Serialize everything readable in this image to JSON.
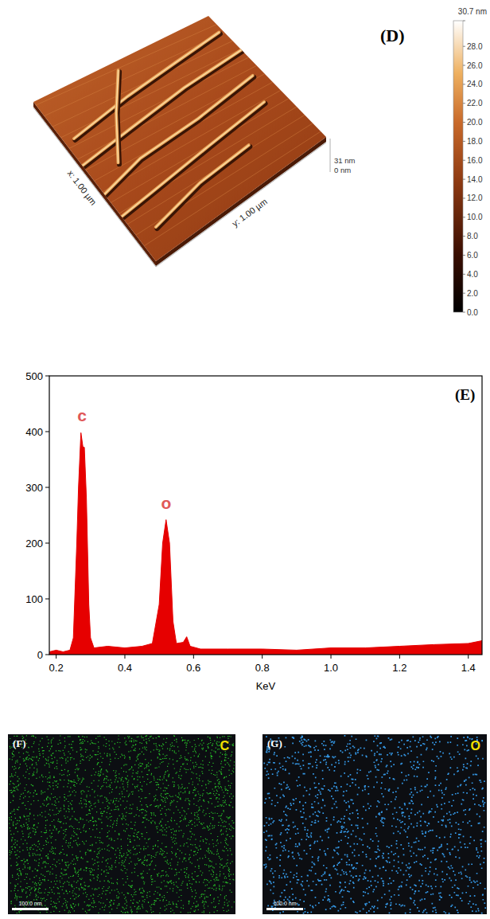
{
  "afm": {
    "letter": "(D)",
    "x_label": "x: 1.00 µm",
    "y_label": "y: 1.00 µm",
    "z_labels": [
      "31 nm",
      "0 nm"
    ],
    "colorbar": {
      "range": [
        0,
        30.7
      ],
      "max_label": "30.7 nm",
      "ticks": [
        {
          "value": 0,
          "label": "0.0"
        },
        {
          "value": 2,
          "label": "2.0"
        },
        {
          "value": 4,
          "label": "4.0"
        },
        {
          "value": 6,
          "label": "6.0"
        },
        {
          "value": 8,
          "label": "8.0"
        },
        {
          "value": 10,
          "label": "10.0"
        },
        {
          "value": 12,
          "label": "12.0"
        },
        {
          "value": 14,
          "label": "14.0"
        },
        {
          "value": 16,
          "label": "16.0"
        },
        {
          "value": 18,
          "label": "18.0"
        },
        {
          "value": 20,
          "label": "20.0"
        },
        {
          "value": 22,
          "label": "22.0"
        },
        {
          "value": 24,
          "label": "24.0"
        },
        {
          "value": 26,
          "label": "26.0"
        },
        {
          "value": 28,
          "label": "28.0"
        }
      ]
    }
  },
  "chart_data": {
    "type": "area",
    "panel": "(E)",
    "x_label": "KeV",
    "color": "#e60000",
    "x": [
      0.18,
      0.2,
      0.22,
      0.24,
      0.25,
      0.26,
      0.265,
      0.272,
      0.278,
      0.282,
      0.288,
      0.295,
      0.3,
      0.31,
      0.35,
      0.4,
      0.45,
      0.48,
      0.5,
      0.51,
      0.52,
      0.53,
      0.54,
      0.55,
      0.57,
      0.58,
      0.59,
      0.62,
      0.7,
      0.8,
      0.9,
      1.0,
      1.1,
      1.2,
      1.3,
      1.4,
      1.44
    ],
    "values": [
      5,
      8,
      5,
      8,
      30,
      200,
      300,
      398,
      372,
      372,
      280,
      90,
      30,
      12,
      15,
      12,
      15,
      20,
      90,
      200,
      242,
      200,
      60,
      20,
      22,
      32,
      15,
      10,
      10,
      10,
      8,
      12,
      12,
      15,
      18,
      20,
      25
    ],
    "xlim": [
      0.18,
      1.44
    ],
    "ylim": [
      0,
      500
    ],
    "xticks": [
      0.2,
      0.4,
      0.6,
      0.8,
      {
        "value": 1,
        "label": "1.0"
      },
      1.2,
      1.4
    ],
    "yticks": [
      0,
      100,
      200,
      300,
      400,
      500
    ],
    "annotations": [
      {
        "text": "c",
        "x": 0.275,
        "y": 418
      },
      {
        "text": "o",
        "x": 0.52,
        "y": 262
      }
    ]
  },
  "maps": [
    {
      "panel": "(F)",
      "element": "C",
      "color": "#2bd42b",
      "scale_bar": "100.0 nm"
    },
    {
      "panel": "(G)",
      "element": "O",
      "color": "#3aa8ff",
      "scale_bar": "100.0 nm"
    }
  ]
}
